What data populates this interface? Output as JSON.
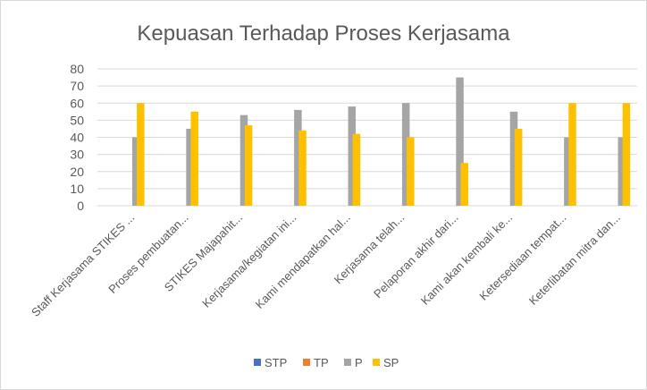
{
  "chart_data": {
    "type": "bar",
    "title": "Kepuasan Terhadap Proses Kerjasama",
    "xlabel": "",
    "ylabel": "",
    "ylim": [
      0,
      80
    ],
    "yticks": [
      0,
      10,
      20,
      30,
      40,
      50,
      60,
      70,
      80
    ],
    "grid": true,
    "legend_position": "bottom",
    "categories": [
      "Staff Kerjasama STIKES ...",
      "Proses pembuatan...",
      "STIKES Majapahit...",
      "Kerjasama/kegiatan ini...",
      "Kami mendapatkan hal...",
      "Kerjasama telah...",
      "Pelaporan akhir dari...",
      "Kami akan kembali ke...",
      "Ketersediaan tempat...",
      "Keterlibatan mitra dan..."
    ],
    "series": [
      {
        "name": "STP",
        "color": "#4472c4",
        "values": [
          0,
          0,
          0,
          0,
          0,
          0,
          0,
          0,
          0,
          0
        ]
      },
      {
        "name": "TP",
        "color": "#ed7d31",
        "values": [
          0,
          0,
          0,
          0,
          0,
          0,
          0,
          0,
          0,
          0
        ]
      },
      {
        "name": "P",
        "color": "#a5a5a5",
        "values": [
          40,
          45,
          53,
          56,
          58,
          60,
          75,
          55,
          40,
          40
        ]
      },
      {
        "name": "SP",
        "color": "#ffc000",
        "values": [
          60,
          55,
          47,
          44,
          42,
          40,
          25,
          45,
          60,
          60
        ]
      }
    ]
  }
}
